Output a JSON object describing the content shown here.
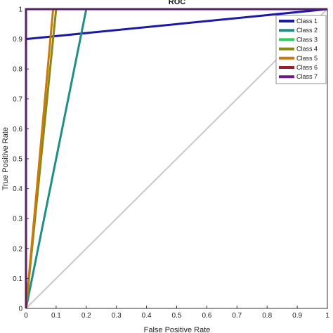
{
  "chart_data": {
    "type": "line",
    "title": "ROC",
    "xlabel": "False Positive Rate",
    "ylabel": "True Positive Rate",
    "xlim": [
      0,
      1
    ],
    "ylim": [
      0,
      1
    ],
    "xticks": [
      "0",
      "0.1",
      "0.2",
      "0.3",
      "0.4",
      "0.5",
      "0.6",
      "0.7",
      "0.8",
      "0.9",
      "1"
    ],
    "yticks": [
      "0",
      "0.1",
      "0.2",
      "0.3",
      "0.4",
      "0.5",
      "0.6",
      "0.7",
      "0.8",
      "0.9",
      "1"
    ],
    "grid": false,
    "legend_position": "top-right",
    "diagonal_color": "#c8c8c8",
    "series": [
      {
        "name": "Class 1",
        "color": "#1a1aa6",
        "x": [
          0,
          0,
          1
        ],
        "y": [
          0,
          0.9,
          1
        ]
      },
      {
        "name": "Class 2",
        "color": "#1f8f86",
        "x": [
          0,
          0.2,
          1
        ],
        "y": [
          0,
          1,
          1
        ]
      },
      {
        "name": "Class 3",
        "color": "#2fcf5f",
        "x": [
          0,
          0,
          1
        ],
        "y": [
          0,
          1,
          1
        ]
      },
      {
        "name": "Class 4",
        "color": "#8a8a10",
        "x": [
          0,
          0.1,
          1
        ],
        "y": [
          0,
          1,
          1
        ]
      },
      {
        "name": "Class 5",
        "color": "#c87a10",
        "x": [
          0,
          0.09,
          1
        ],
        "y": [
          0,
          1,
          1
        ]
      },
      {
        "name": "Class 6",
        "color": "#a01c2c",
        "x": [
          0,
          0,
          1
        ],
        "y": [
          0,
          1,
          1
        ]
      },
      {
        "name": "Class 7",
        "color": "#6a1a86",
        "x": [
          0,
          0,
          1
        ],
        "y": [
          0,
          1,
          1
        ]
      }
    ]
  }
}
